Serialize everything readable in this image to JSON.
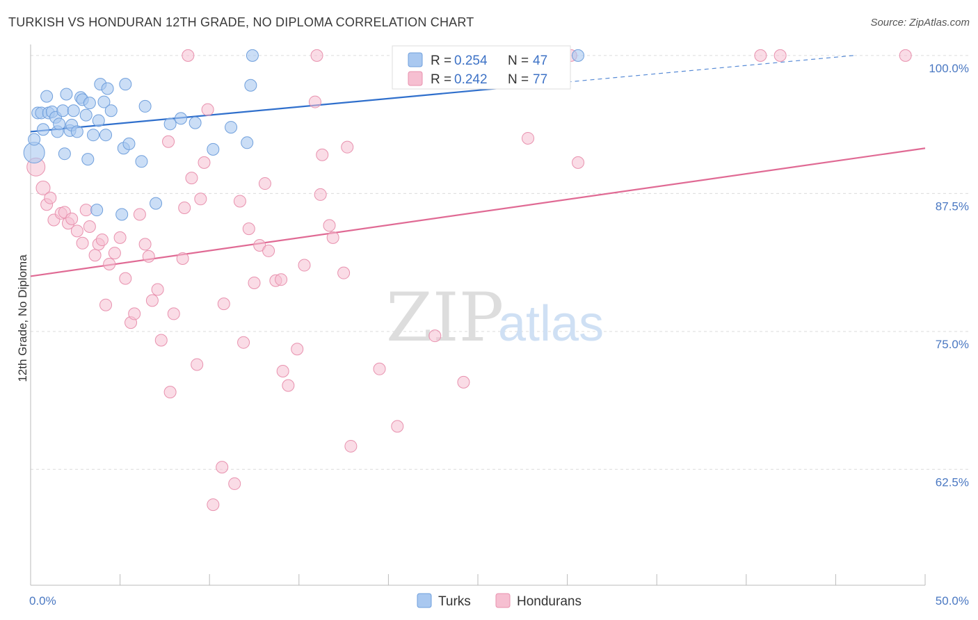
{
  "title": "TURKISH VS HONDURAN 12TH GRADE, NO DIPLOMA CORRELATION CHART",
  "source": "Source: ZipAtlas.com",
  "watermark": {
    "zip": "ZIP",
    "atlas": "atlas"
  },
  "colors": {
    "turks_fill": "#a9c8f0",
    "turks_stroke": "#6f9fdc",
    "turks_line": "#2f6fcc",
    "hond_fill": "#f6bfd1",
    "hond_stroke": "#e891ae",
    "hond_line": "#e06a94",
    "grid": "#dcdcdc",
    "axis": "#bbbbbb",
    "tick_text": "#4a78c2"
  },
  "legend": {
    "rows": [
      {
        "r_label": "R =",
        "r_value": "0.254",
        "n_label": "N =",
        "n_value": "47",
        "series": "turks"
      },
      {
        "r_label": "R =",
        "r_value": "0.242",
        "n_label": "N =",
        "n_value": "77",
        "series": "hond"
      }
    ]
  },
  "bottom_legend": {
    "turks": "Turks",
    "hond": "Hondurans"
  },
  "chart_data": {
    "type": "scatter",
    "title": "TURKISH VS HONDURAN 12TH GRADE, NO DIPLOMA CORRELATION CHART",
    "xlabel": "",
    "ylabel": "12th Grade, No Diploma",
    "xlim": [
      0,
      50
    ],
    "ylim": [
      52,
      101
    ],
    "x_tick_labels": [
      {
        "value": 0,
        "label": "0.0%"
      },
      {
        "value": 50,
        "label": "50.0%"
      }
    ],
    "y_tick_labels": [
      {
        "value": 100,
        "label": "100.0%"
      },
      {
        "value": 87.5,
        "label": "87.5%"
      },
      {
        "value": 75,
        "label": "75.0%"
      },
      {
        "value": 62.5,
        "label": "62.5%"
      }
    ],
    "grid": true,
    "series": [
      {
        "name": "Turks",
        "trend": {
          "x0": 0,
          "y0": 93.1,
          "x1": 30,
          "y1": 97.6,
          "dashed_to_x": 46,
          "dashed_to_y": 100
        },
        "points": [
          [
            0.2,
            91.2
          ],
          [
            0.2,
            92.4
          ],
          [
            0.4,
            94.8
          ],
          [
            0.6,
            94.8
          ],
          [
            0.7,
            93.3
          ],
          [
            0.9,
            96.3
          ],
          [
            1.0,
            94.8
          ],
          [
            1.2,
            94.9
          ],
          [
            1.4,
            94.4
          ],
          [
            1.5,
            93.1
          ],
          [
            1.6,
            93.8
          ],
          [
            1.8,
            95.0
          ],
          [
            1.9,
            91.1
          ],
          [
            2.0,
            96.5
          ],
          [
            2.2,
            93.2
          ],
          [
            2.3,
            93.7
          ],
          [
            2.4,
            95.0
          ],
          [
            2.6,
            93.1
          ],
          [
            2.8,
            96.2
          ],
          [
            2.9,
            96.0
          ],
          [
            3.1,
            94.6
          ],
          [
            3.2,
            90.6
          ],
          [
            3.3,
            95.7
          ],
          [
            3.5,
            92.8
          ],
          [
            3.7,
            86.0
          ],
          [
            3.8,
            94.1
          ],
          [
            3.9,
            97.4
          ],
          [
            4.1,
            95.8
          ],
          [
            4.2,
            92.8
          ],
          [
            4.3,
            97.0
          ],
          [
            4.5,
            95.0
          ],
          [
            5.1,
            85.6
          ],
          [
            5.2,
            91.6
          ],
          [
            5.3,
            97.4
          ],
          [
            5.5,
            92.0
          ],
          [
            6.2,
            90.4
          ],
          [
            6.4,
            95.4
          ],
          [
            7.0,
            86.6
          ],
          [
            7.8,
            93.8
          ],
          [
            8.4,
            94.3
          ],
          [
            9.2,
            93.9
          ],
          [
            10.2,
            91.5
          ],
          [
            11.2,
            93.5
          ],
          [
            12.1,
            92.1
          ],
          [
            12.3,
            97.3
          ],
          [
            12.4,
            100.0
          ],
          [
            30.6,
            100.0
          ]
        ]
      },
      {
        "name": "Hondurans",
        "trend": {
          "x0": 0,
          "y0": 80.0,
          "x1": 50,
          "y1": 91.6
        },
        "points": [
          [
            0.3,
            89.9
          ],
          [
            0.7,
            88.0
          ],
          [
            0.9,
            86.5
          ],
          [
            1.1,
            87.1
          ],
          [
            1.3,
            85.1
          ],
          [
            1.7,
            85.7
          ],
          [
            1.9,
            85.8
          ],
          [
            2.1,
            84.8
          ],
          [
            2.3,
            85.2
          ],
          [
            2.6,
            84.1
          ],
          [
            2.9,
            83.0
          ],
          [
            3.1,
            86.0
          ],
          [
            3.3,
            84.5
          ],
          [
            3.6,
            81.9
          ],
          [
            3.8,
            82.9
          ],
          [
            4.0,
            83.3
          ],
          [
            4.2,
            77.4
          ],
          [
            4.4,
            81.1
          ],
          [
            4.7,
            82.1
          ],
          [
            5.0,
            83.5
          ],
          [
            5.3,
            79.8
          ],
          [
            5.6,
            75.8
          ],
          [
            5.8,
            76.6
          ],
          [
            6.1,
            85.6
          ],
          [
            6.4,
            82.9
          ],
          [
            6.6,
            81.8
          ],
          [
            6.8,
            77.8
          ],
          [
            7.1,
            78.8
          ],
          [
            7.3,
            74.2
          ],
          [
            7.7,
            92.2
          ],
          [
            7.8,
            69.5
          ],
          [
            8.0,
            76.6
          ],
          [
            8.5,
            81.6
          ],
          [
            8.6,
            86.2
          ],
          [
            9.0,
            88.9
          ],
          [
            9.3,
            72.0
          ],
          [
            9.5,
            87.0
          ],
          [
            9.7,
            90.3
          ],
          [
            9.9,
            95.1
          ],
          [
            10.8,
            77.5
          ],
          [
            11.7,
            86.8
          ],
          [
            11.9,
            74.0
          ],
          [
            12.2,
            84.3
          ],
          [
            12.5,
            79.4
          ],
          [
            12.8,
            82.8
          ],
          [
            13.1,
            88.4
          ],
          [
            13.3,
            82.3
          ],
          [
            13.7,
            79.6
          ],
          [
            14.0,
            79.7
          ],
          [
            14.1,
            71.4
          ],
          [
            14.4,
            70.1
          ],
          [
            14.9,
            73.4
          ],
          [
            15.3,
            81.0
          ],
          [
            15.9,
            95.8
          ],
          [
            16.2,
            87.4
          ],
          [
            16.3,
            91.0
          ],
          [
            16.7,
            84.6
          ],
          [
            16.9,
            83.5
          ],
          [
            17.5,
            80.3
          ],
          [
            17.7,
            91.7
          ],
          [
            17.9,
            64.6
          ],
          [
            19.5,
            71.6
          ],
          [
            20.5,
            66.4
          ],
          [
            22.6,
            74.6
          ],
          [
            24.2,
            70.4
          ],
          [
            27.8,
            92.5
          ],
          [
            28.3,
            100.0
          ],
          [
            30.2,
            100.0
          ],
          [
            30.6,
            90.3
          ],
          [
            40.8,
            100.0
          ],
          [
            41.9,
            100.0
          ],
          [
            48.9,
            100.0
          ],
          [
            8.8,
            100.0
          ],
          [
            10.7,
            62.7
          ],
          [
            11.4,
            61.2
          ],
          [
            10.2,
            59.3
          ],
          [
            16.0,
            100.0
          ]
        ]
      }
    ]
  }
}
